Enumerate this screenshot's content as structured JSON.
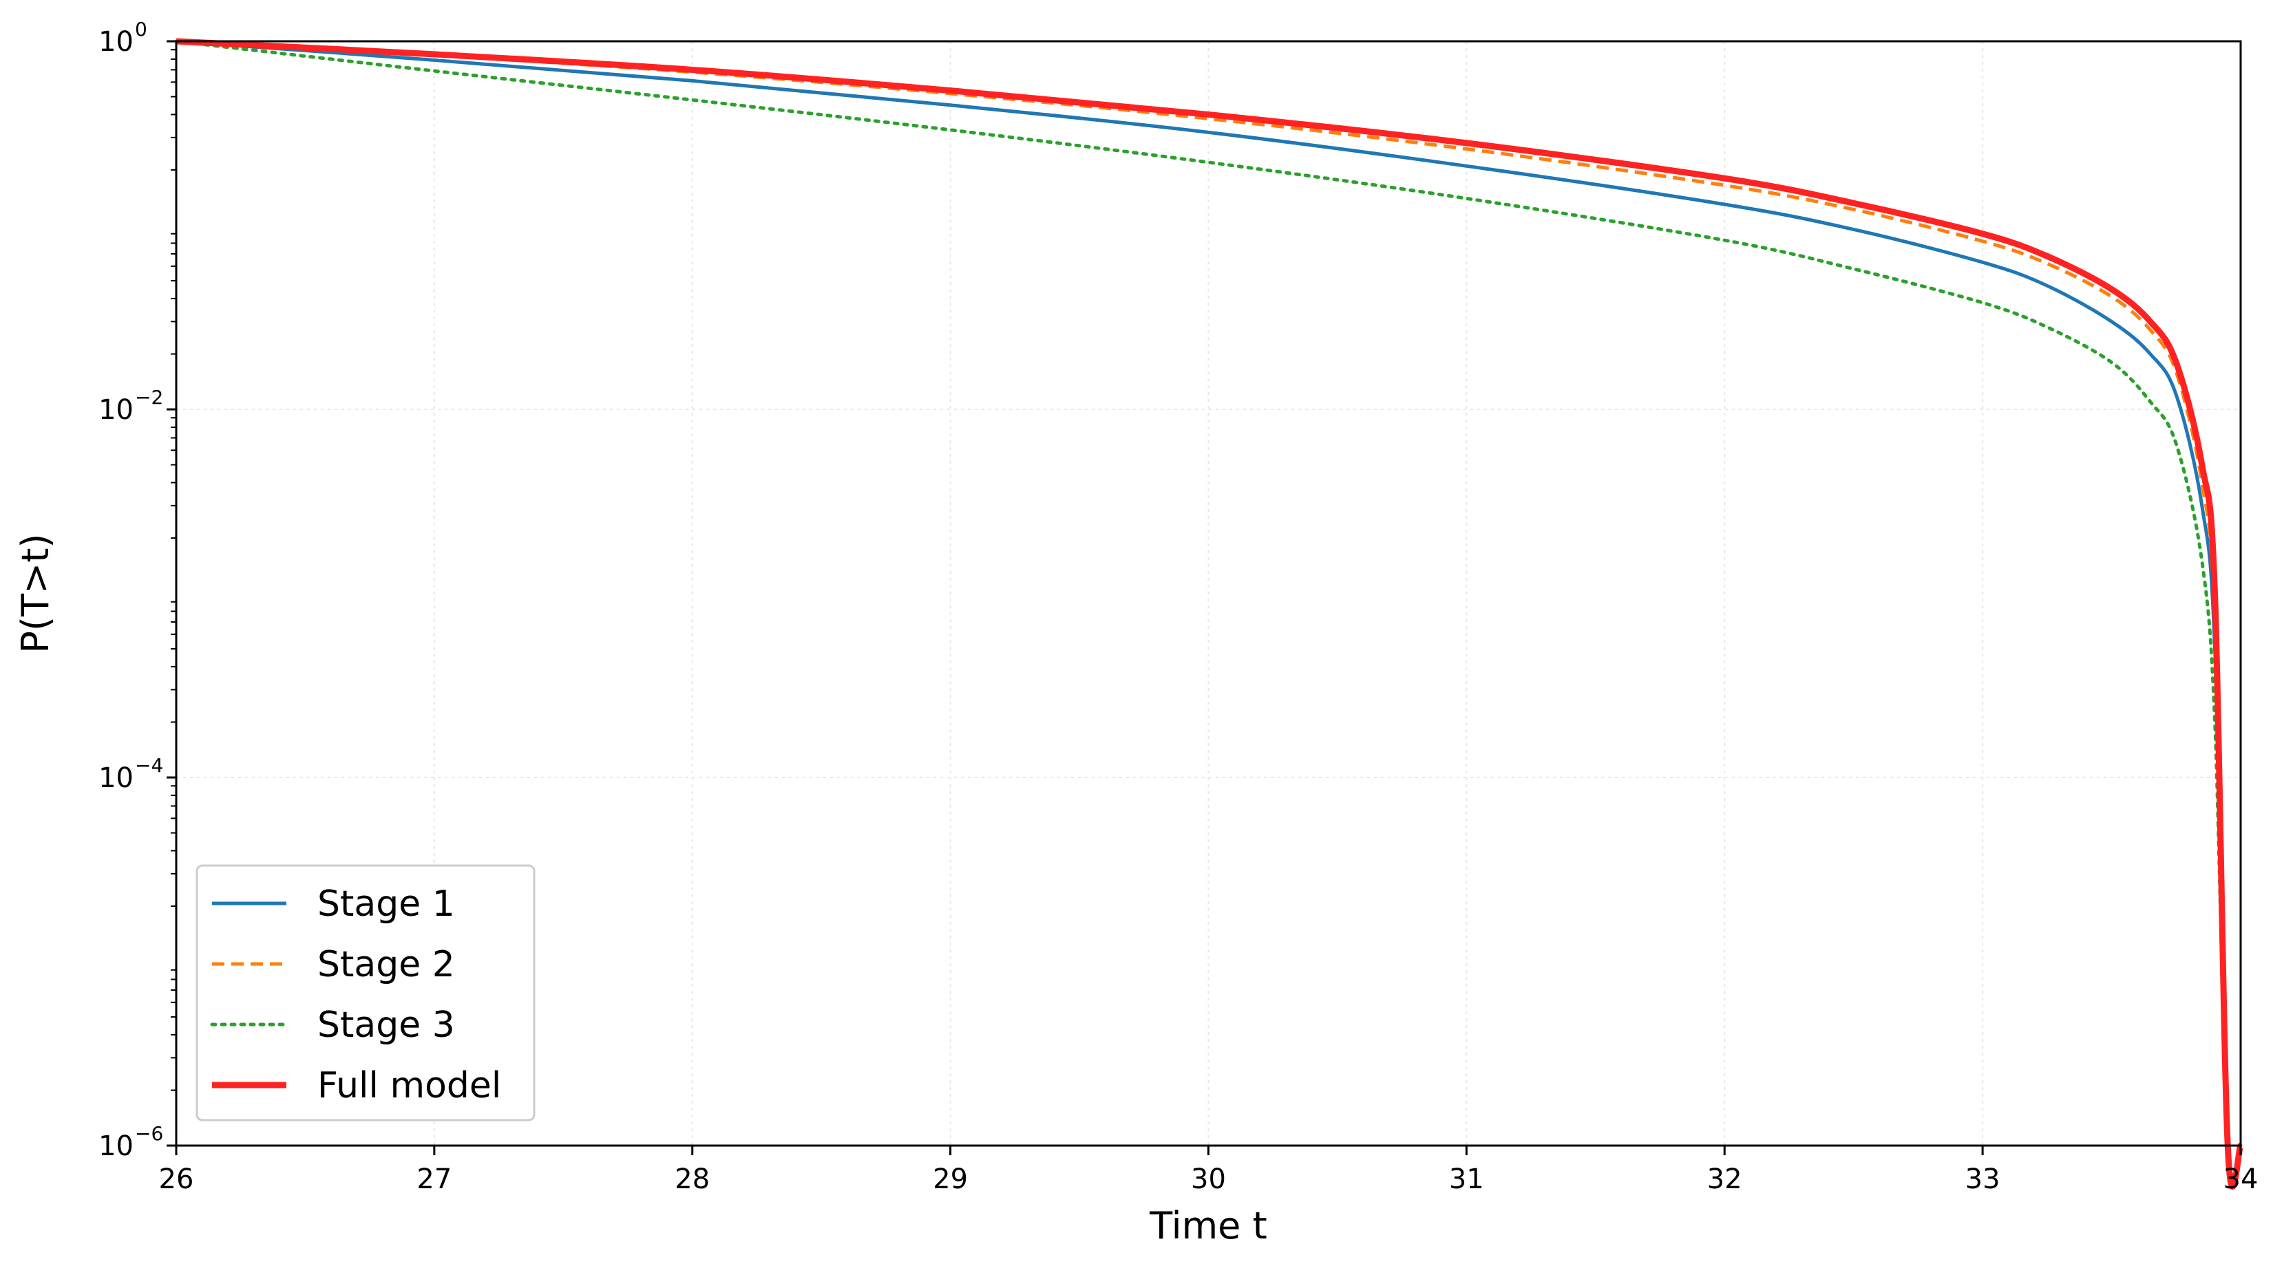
{
  "chart_data": {
    "type": "line",
    "xlabel": "Time t",
    "ylabel": "P(T>t)",
    "xlim": [
      26,
      34
    ],
    "ylim": [
      1e-06,
      1
    ],
    "yscale": "log",
    "grid": true,
    "legend_placement": "lower-left",
    "x_ticks": [
      "26",
      "27",
      "28",
      "29",
      "30",
      "31",
      "32",
      "33",
      "34"
    ],
    "y_ticks": [
      {
        "value": 1,
        "base": "10",
        "exp": "0"
      },
      {
        "value": 0.01,
        "base": "10",
        "exp": "−2"
      },
      {
        "value": 0.0001,
        "base": "10",
        "exp": "−4"
      },
      {
        "value": 1e-06,
        "base": "10",
        "exp": "−6"
      }
    ],
    "x": [
      26,
      27,
      28,
      29,
      30,
      31,
      32,
      32.5,
      33,
      33.25,
      33.5,
      33.65,
      33.75,
      33.85,
      33.9,
      33.95,
      34
    ],
    "series": [
      {
        "name": "Stage 1",
        "color": "#1f77b4",
        "style": "solid",
        "values": [
          1.0,
          0.79,
          0.61,
          0.45,
          0.32,
          0.21,
          0.13,
          0.095,
          0.063,
          0.047,
          0.03,
          0.02,
          0.012,
          0.003,
          0.0005,
          1e-06,
          1e-06
        ]
      },
      {
        "name": "Stage 2",
        "color": "#ff7f0e",
        "style": "dashed",
        "values": [
          1.0,
          0.84,
          0.68,
          0.52,
          0.38,
          0.26,
          0.165,
          0.122,
          0.082,
          0.062,
          0.041,
          0.027,
          0.016,
          0.004,
          0.0007,
          1e-06,
          1e-06
        ]
      },
      {
        "name": "Stage 3",
        "color": "#2ca02c",
        "style": "dotted",
        "values": [
          1.0,
          0.69,
          0.48,
          0.33,
          0.22,
          0.14,
          0.083,
          0.058,
          0.038,
          0.028,
          0.018,
          0.011,
          0.0065,
          0.0015,
          0.0002,
          1e-06,
          1e-06
        ]
      },
      {
        "name": "Full model",
        "color": "#ff2222",
        "style": "solid-thick",
        "values": [
          1.0,
          0.85,
          0.7,
          0.54,
          0.4,
          0.28,
          0.18,
          0.132,
          0.09,
          0.068,
          0.045,
          0.03,
          0.018,
          0.005,
          0.001,
          1e-06,
          1e-06
        ]
      }
    ]
  }
}
